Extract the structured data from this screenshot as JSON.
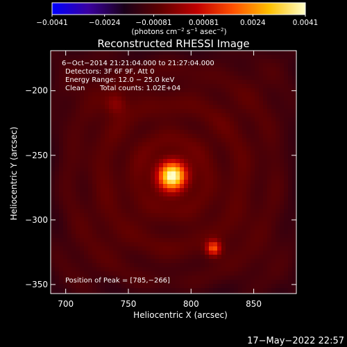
{
  "chart_data": {
    "type": "heatmap",
    "title": "Reconstructed RHESSI Image",
    "xlabel": "Heliocentric X (arcsec)",
    "ylabel": "Heliocentric Y (arcsec)",
    "xlim": [
      688,
      884
    ],
    "ylim": [
      -357,
      -169
    ],
    "x_ticks": [
      {
        "value": 700,
        "label": "700"
      },
      {
        "value": 750,
        "label": "750"
      },
      {
        "value": 800,
        "label": "800"
      },
      {
        "value": 850,
        "label": "850"
      }
    ],
    "y_ticks": [
      {
        "value": -200,
        "label": "−200"
      },
      {
        "value": -250,
        "label": "−250"
      },
      {
        "value": -300,
        "label": "−300"
      },
      {
        "value": -350,
        "label": "−350"
      }
    ],
    "colorbar": {
      "range": [
        -0.0041,
        0.0041
      ],
      "ticks": [
        {
          "value": -0.0041,
          "label": "−0.0041"
        },
        {
          "value": -0.0024,
          "label": "−0.0024"
        },
        {
          "value": -0.00081,
          "label": "−0.00081"
        },
        {
          "value": 0.00081,
          "label": "0.00081"
        },
        {
          "value": 0.0024,
          "label": "0.0024"
        },
        {
          "value": 0.0041,
          "label": "0.0041"
        }
      ],
      "unit_label": {
        "prefix": "(photons cm",
        "exp1": "−2",
        "mid1": " s",
        "exp2": "−1",
        "mid2": " asec",
        "exp3": "−2",
        "suffix": ")"
      },
      "colors": [
        "#0000ff",
        "#3a00a0",
        "#1a0018",
        "#600000",
        "#c00000",
        "#ff5000",
        "#ffc000",
        "#ffffc8"
      ]
    },
    "sources": [
      {
        "x": 785,
        "y": -266,
        "sigma": 8,
        "amp": 1.0
      },
      {
        "x": 818,
        "y": -322,
        "sigma": 4,
        "amp": 0.55
      },
      {
        "x": 740,
        "y": -210,
        "sigma": 6,
        "amp": 0.18
      }
    ],
    "annotations": {
      "info_line1": "6−Oct−2014 21:21:04.000 to 21:27:04.000",
      "info_line2": "Detectors: 3F 6F 9F, Att 0",
      "info_line3": "Energy Range: 12.0 − 25.0 keV",
      "info_line4_a": "Clean",
      "info_line4_b": "Total counts: 1.02E+04",
      "peak": "Position of Peak = [785,−266]"
    },
    "date_stamp": "17−May−2022 22:57"
  }
}
